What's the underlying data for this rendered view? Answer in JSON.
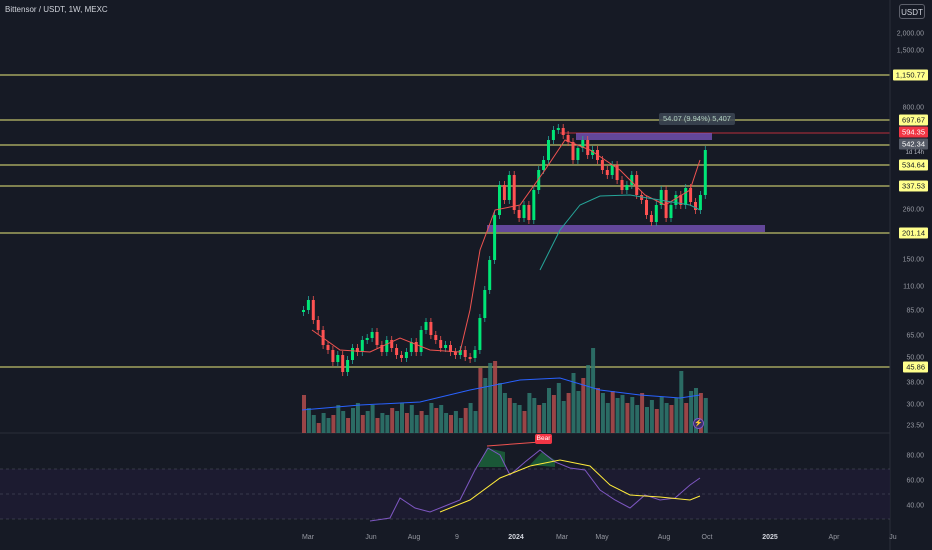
{
  "title": "Bittensor / USDT, 1W, MEXC",
  "currency": "USDT",
  "price_axis": [
    "2,000.00",
    "1,500.00",
    "800.00",
    "260.00",
    "150.00",
    "110.00",
    "85.00",
    "65.00",
    "50.00",
    "38.00",
    "30.00",
    "23.50"
  ],
  "level_tags": [
    {
      "text": "1,150.77",
      "style": "yellow"
    },
    {
      "text": "697.67",
      "style": "yellow"
    },
    {
      "text": "594.35",
      "style": "red"
    },
    {
      "text": "542.34",
      "style": "grey"
    },
    {
      "text": "534.64",
      "style": "yellow"
    },
    {
      "text": "337.53",
      "style": "yellow"
    },
    {
      "text": "201.14",
      "style": "yellow"
    },
    {
      "text": "45.86",
      "style": "yellow"
    }
  ],
  "countdown": "1d 14h",
  "rsi_axis": [
    "80.00",
    "60.00",
    "40.00"
  ],
  "time_axis": [
    "Mar",
    "Jun",
    "Aug",
    "9",
    "2024",
    "Mar",
    "May",
    "Aug",
    "Oct",
    "2025",
    "Apr",
    "Ju"
  ],
  "measure_label": "54.07 (9.94%) 5,407",
  "bear_label": "Bear",
  "colors": {
    "background": "#161a25",
    "up": "#26a69a",
    "down": "#ef5350",
    "accent_line": "#ffff8c",
    "zone": "#7e57c2"
  }
}
